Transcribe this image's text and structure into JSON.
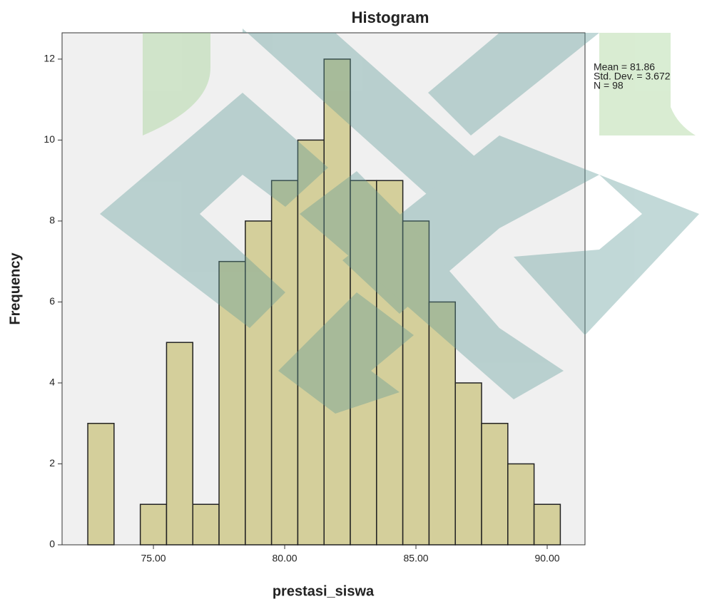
{
  "chart_data": {
    "type": "histogram",
    "title": "Histogram",
    "x_label": "prestasi_siswa",
    "y_label": "Frequency",
    "bins": [
      72.5,
      73.5,
      74.5,
      75.5,
      76.5,
      77.5,
      78.5,
      79.5,
      80.5,
      81.5,
      82.5,
      83.5,
      84.5,
      85.5,
      86.5,
      87.5,
      88.5,
      89.5,
      90.5
    ],
    "counts": [
      3,
      0,
      1,
      5,
      1,
      7,
      8,
      9,
      10,
      12,
      9,
      9,
      8,
      6,
      4,
      3,
      2,
      1
    ],
    "color": "#d4cf9b",
    "xlim": [
      71.52,
      91.44
    ],
    "xticks": [
      {
        "value": 75,
        "label": "75.00"
      },
      {
        "value": 80,
        "label": "80.00"
      },
      {
        "value": 85,
        "label": "85.00"
      },
      {
        "value": 90,
        "label": "90.00"
      }
    ],
    "ylim": [
      0,
      12.65
    ],
    "yticks": [
      0,
      2,
      4,
      6,
      8,
      10,
      12
    ],
    "annotations": [
      "Mean = 81.86",
      "Std. Dev. = 3.672",
      "N = 98"
    ]
  }
}
